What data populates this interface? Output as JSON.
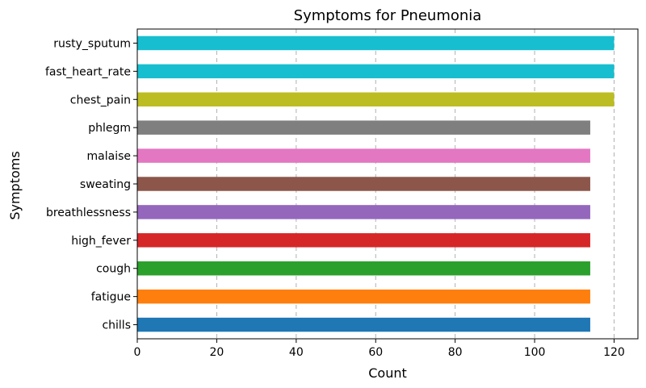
{
  "chart_data": {
    "type": "bar",
    "orientation": "horizontal",
    "title": "Symptoms for Pneumonia",
    "xlabel": "Count",
    "ylabel": "Symptoms",
    "xlim": [
      0,
      126
    ],
    "xticks": [
      0,
      20,
      40,
      60,
      80,
      100,
      120
    ],
    "grid": "x-dashed",
    "categories": [
      "chills",
      "fatigue",
      "cough",
      "high_fever",
      "breathlessness",
      "sweating",
      "malaise",
      "phlegm",
      "chest_pain",
      "fast_heart_rate",
      "rusty_sputum"
    ],
    "values": [
      114,
      114,
      114,
      114,
      114,
      114,
      114,
      114,
      120,
      120,
      120
    ],
    "colors": [
      "#1f77b4",
      "#ff7f0e",
      "#2ca02c",
      "#d62728",
      "#9467bd",
      "#8c564b",
      "#e377c2",
      "#7f7f7f",
      "#bcbd22",
      "#17becf",
      "#17becf"
    ]
  }
}
